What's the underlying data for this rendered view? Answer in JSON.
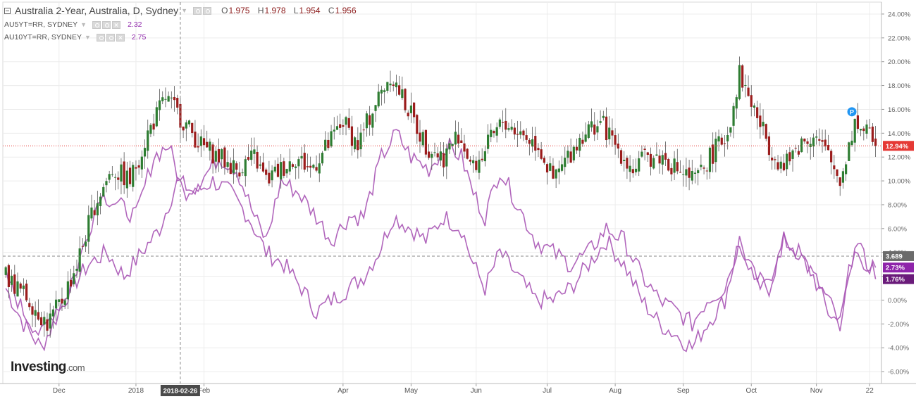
{
  "legend": {
    "main_title": "Australia 2-Year, Australia, D, Sydney",
    "ohlc": [
      {
        "k": "O",
        "v": "1.975"
      },
      {
        "k": "H",
        "v": "1.978"
      },
      {
        "k": "L",
        "v": "1.954"
      },
      {
        "k": "C",
        "v": "1.956"
      }
    ],
    "studies": [
      {
        "name": "AU5YT=RR, SYDNEY",
        "value": "2.32"
      },
      {
        "name": "AU10YT=RR, SYDNEY",
        "value": "2.75"
      }
    ]
  },
  "logo": {
    "brand": "Investing",
    "suffix": ".com"
  },
  "colors": {
    "up": "#2e7d32",
    "down": "#9b1c1c",
    "compare": "#a855b5",
    "price_line": "#e53935",
    "grid": "#ececec",
    "badge_dark": "#6b6b6b",
    "badge_purple": "#8e24aa",
    "badge_purple_dark": "#6a1b7a",
    "p_marker": "#2196f3"
  },
  "crosshair": {
    "date_label": "2018-02-26",
    "value_label": "3.689"
  },
  "chart_data": {
    "type": "candlestick",
    "title": "Australia 2-Year, Australia, D, Sydney",
    "y_axis": {
      "side": "right",
      "range": [
        -7,
        25
      ],
      "unit": "%",
      "ticks": [
        "24.00%",
        "22.00%",
        "20.00%",
        "18.00%",
        "16.00%",
        "14.00%",
        "12.00%",
        "10.00%",
        "8.00%",
        "6.00%",
        "4.00%",
        "2.00%",
        "0.00%",
        "-2.00%",
        "-4.00%",
        "-6.00%"
      ],
      "tick_values": [
        24,
        22,
        20,
        18,
        16,
        14,
        12,
        10,
        8,
        6,
        4,
        2,
        0,
        -2,
        -4,
        -6
      ]
    },
    "x_axis": {
      "labels": [
        "Dec",
        "2018",
        "Feb",
        "Apr",
        "May",
        "Jun",
        "Jul",
        "Aug",
        "Sep",
        "Oct",
        "Nov",
        "22"
      ],
      "label_index": [
        18,
        44,
        67,
        114,
        137,
        159,
        183,
        206,
        229,
        252,
        274,
        292
      ]
    },
    "n_bars": 295,
    "grid": true,
    "series_anchors": [
      {
        "name": "Australia 2-Year (% change)",
        "style": "candles",
        "anchors": [
          [
            0,
            2
          ],
          [
            8,
            0
          ],
          [
            14,
            -2
          ],
          [
            19,
            0
          ],
          [
            24,
            3
          ],
          [
            30,
            8
          ],
          [
            36,
            11
          ],
          [
            42,
            10
          ],
          [
            48,
            14
          ],
          [
            54,
            17
          ],
          [
            60,
            15
          ],
          [
            66,
            13
          ],
          [
            72,
            12
          ],
          [
            78,
            11
          ],
          [
            84,
            12
          ],
          [
            88,
            10
          ],
          [
            93,
            11
          ],
          [
            98,
            12
          ],
          [
            103,
            11
          ],
          [
            109,
            13
          ],
          [
            114,
            15
          ],
          [
            119,
            13
          ],
          [
            124,
            16
          ],
          [
            130,
            19
          ],
          [
            136,
            16
          ],
          [
            142,
            13
          ],
          [
            148,
            12
          ],
          [
            153,
            14
          ],
          [
            158,
            11
          ],
          [
            163,
            13
          ],
          [
            168,
            15
          ],
          [
            174,
            14
          ],
          [
            180,
            13
          ],
          [
            185,
            10
          ],
          [
            190,
            12
          ],
          [
            195,
            14
          ],
          [
            201,
            15
          ],
          [
            206,
            13
          ],
          [
            212,
            11
          ],
          [
            217,
            12
          ],
          [
            222,
            12
          ],
          [
            227,
            11
          ],
          [
            233,
            10
          ],
          [
            238,
            12
          ],
          [
            244,
            14
          ],
          [
            248,
            19
          ],
          [
            253,
            16
          ],
          [
            258,
            13
          ],
          [
            263,
            11
          ],
          [
            268,
            13
          ],
          [
            273,
            14
          ],
          [
            278,
            12
          ],
          [
            282,
            10
          ],
          [
            287,
            15
          ],
          [
            291,
            14
          ],
          [
            295,
            12.9
          ]
        ]
      },
      {
        "name": "AU5YT=RR, SYDNEY",
        "style": "line",
        "anchors": [
          [
            0,
            2
          ],
          [
            6,
            -1
          ],
          [
            12,
            -3
          ],
          [
            16,
            -1
          ],
          [
            22,
            1
          ],
          [
            27,
            5
          ],
          [
            32,
            9
          ],
          [
            38,
            8
          ],
          [
            44,
            7
          ],
          [
            50,
            12
          ],
          [
            55,
            13
          ],
          [
            60,
            9
          ],
          [
            66,
            10
          ],
          [
            72,
            12
          ],
          [
            78,
            11
          ],
          [
            84,
            7
          ],
          [
            88,
            5
          ],
          [
            93,
            10
          ],
          [
            99,
            9
          ],
          [
            105,
            7
          ],
          [
            110,
            5
          ],
          [
            116,
            7
          ],
          [
            121,
            7
          ],
          [
            127,
            12
          ],
          [
            132,
            14
          ],
          [
            137,
            12
          ],
          [
            143,
            11
          ],
          [
            149,
            13
          ],
          [
            154,
            12
          ],
          [
            158,
            9
          ],
          [
            162,
            7
          ],
          [
            167,
            11
          ],
          [
            173,
            8
          ],
          [
            179,
            5
          ],
          [
            185,
            4
          ],
          [
            191,
            3
          ],
          [
            197,
            4
          ],
          [
            203,
            6
          ],
          [
            209,
            5
          ],
          [
            215,
            2
          ],
          [
            221,
            0
          ],
          [
            227,
            -1
          ],
          [
            232,
            -2
          ],
          [
            237,
            0
          ],
          [
            243,
            1
          ],
          [
            248,
            5
          ],
          [
            253,
            2
          ],
          [
            258,
            1
          ],
          [
            263,
            5
          ],
          [
            268,
            4
          ],
          [
            273,
            2
          ],
          [
            278,
            0
          ],
          [
            282,
            -2
          ],
          [
            287,
            5
          ],
          [
            291,
            3
          ],
          [
            295,
            2.73
          ]
        ]
      },
      {
        "name": "AU10YT=RR, SYDNEY",
        "style": "line",
        "anchors": [
          [
            0,
            1
          ],
          [
            6,
            -2
          ],
          [
            12,
            -4
          ],
          [
            16,
            -2
          ],
          [
            22,
            1
          ],
          [
            28,
            3
          ],
          [
            34,
            4
          ],
          [
            40,
            2
          ],
          [
            46,
            4
          ],
          [
            52,
            6
          ],
          [
            58,
            10
          ],
          [
            64,
            9
          ],
          [
            70,
            10
          ],
          [
            76,
            9
          ],
          [
            82,
            7
          ],
          [
            88,
            4
          ],
          [
            94,
            3
          ],
          [
            100,
            1
          ],
          [
            105,
            -1
          ],
          [
            110,
            0
          ],
          [
            116,
            1
          ],
          [
            121,
            2
          ],
          [
            126,
            4
          ],
          [
            131,
            7
          ],
          [
            137,
            6
          ],
          [
            142,
            5
          ],
          [
            148,
            7
          ],
          [
            154,
            6
          ],
          [
            158,
            3
          ],
          [
            162,
            1
          ],
          [
            167,
            4
          ],
          [
            173,
            2
          ],
          [
            179,
            0
          ],
          [
            185,
            0
          ],
          [
            191,
            1
          ],
          [
            197,
            3
          ],
          [
            203,
            5
          ],
          [
            209,
            3
          ],
          [
            215,
            0
          ],
          [
            221,
            -2
          ],
          [
            227,
            -3
          ],
          [
            232,
            -4
          ],
          [
            237,
            -2
          ],
          [
            243,
            0
          ],
          [
            248,
            5
          ],
          [
            253,
            2
          ],
          [
            258,
            1
          ],
          [
            263,
            5
          ],
          [
            268,
            4
          ],
          [
            273,
            2
          ],
          [
            278,
            -1
          ],
          [
            282,
            -2
          ],
          [
            287,
            4
          ],
          [
            291,
            3
          ],
          [
            295,
            1.76
          ]
        ]
      }
    ],
    "last_values": {
      "Australia 2-Year": "12.94%",
      "AU5YT=RR, SYDNEY": "2.73%",
      "AU10YT=RR, SYDNEY": "1.76%"
    }
  }
}
